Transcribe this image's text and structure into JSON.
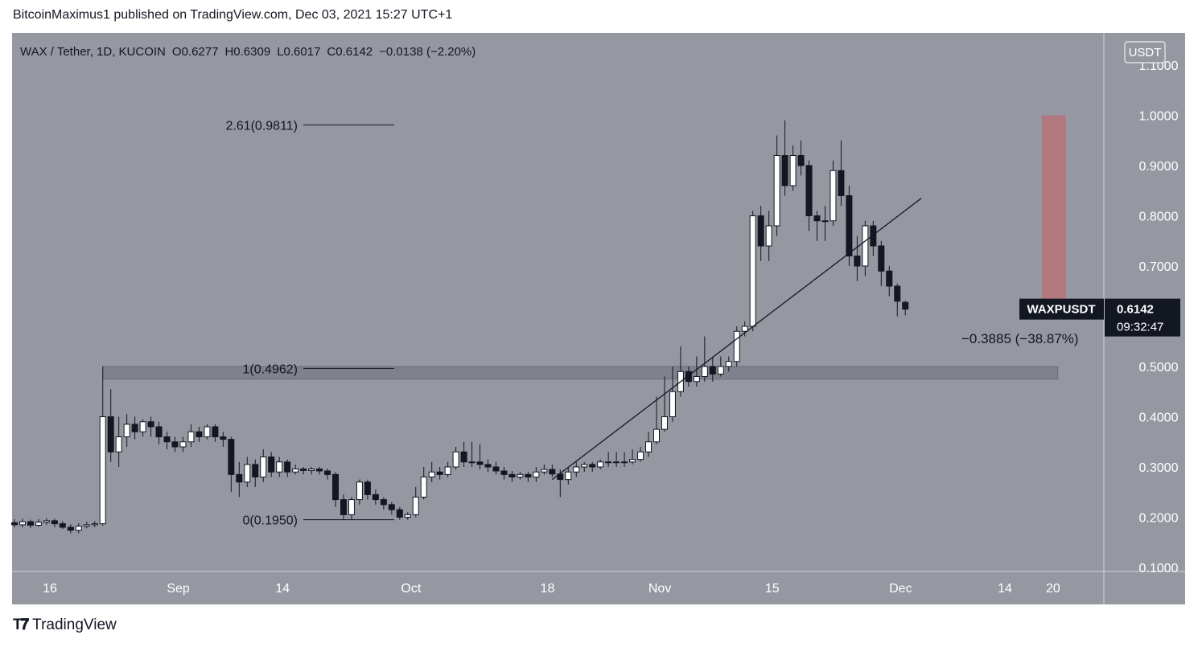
{
  "header": {
    "publisher": "BitcoinMaximus1 published on TradingView.com, Dec 03, 2021 15:27 UTC+1"
  },
  "footer": {
    "brand": "TradingView"
  },
  "colors": {
    "plot_bg": "#9598a1",
    "up": "#ffffff",
    "down": "#131722",
    "zone": "#787b86",
    "target": "#b2787f",
    "label_bg": "#131722"
  },
  "chart_data": {
    "type": "candlestick",
    "symbol_line": {
      "symbol": "WAX / Tether, 1D, KUCOIN",
      "o_label": "O",
      "o": "0.6277",
      "h_label": "H",
      "h": "0.6309",
      "l_label": "L",
      "l": "0.6017",
      "c_label": "C",
      "c": "0.6142",
      "change": "−0.0138 (−2.20%)"
    },
    "currency": "USDT",
    "y_ticks": [
      "1.1000",
      "1.0000",
      "0.9000",
      "0.8000",
      "0.7000",
      "0.6000",
      "0.5000",
      "0.4000",
      "0.3000",
      "0.2000",
      "0.1000"
    ],
    "y_tick_values": [
      1.1,
      1.0,
      0.9,
      0.8,
      0.7,
      0.6,
      0.5,
      0.4,
      0.3,
      0.2,
      0.1
    ],
    "ylim": [
      0.1,
      1.1
    ],
    "x_ticks": [
      {
        "label": "16",
        "day": 0
      },
      {
        "label": "Sep",
        "day": 16
      },
      {
        "label": "14",
        "day": 29
      },
      {
        "label": "Oct",
        "day": 45
      },
      {
        "label": "18",
        "day": 62
      },
      {
        "label": "Nov",
        "day": 76
      },
      {
        "label": "15",
        "day": 90
      },
      {
        "label": "Dec",
        "day": 106
      },
      {
        "label": "14",
        "day": 119
      },
      {
        "label": "20",
        "day": 125
      }
    ],
    "last_price": {
      "symbol": "WAXPUSDT",
      "price": "0.6142",
      "countdown": "09:32:47",
      "value": 0.6142
    },
    "fib_levels": [
      {
        "label": "2.61(0.9811)",
        "value": 0.9811
      },
      {
        "label": "1(0.4962)",
        "value": 0.4962
      },
      {
        "label": "0(0.1950)",
        "value": 0.195
      }
    ],
    "support_zone": {
      "from_day": 11,
      "to_day": 130,
      "top": 0.5,
      "bottom": 0.475
    },
    "target_box": {
      "from_day": 128,
      "to_day": 131,
      "top": 1.0,
      "bottom": 0.62
    },
    "measure_label": "−0.3885 (−38.87%)",
    "trendline": {
      "start": {
        "day": 67,
        "value": 0.275
      },
      "end": {
        "day": 113,
        "value": 0.835
      }
    },
    "candles": [
      [
        0,
        0.189,
        0.185,
        0.196,
        0.18
      ],
      [
        1,
        0.185,
        0.191,
        0.197,
        0.18
      ],
      [
        2,
        0.191,
        0.184,
        0.195,
        0.178
      ],
      [
        3,
        0.184,
        0.19,
        0.196,
        0.181
      ],
      [
        4,
        0.19,
        0.193,
        0.198,
        0.185
      ],
      [
        5,
        0.193,
        0.187,
        0.197,
        0.18
      ],
      [
        6,
        0.187,
        0.18,
        0.192,
        0.176
      ],
      [
        7,
        0.18,
        0.174,
        0.186,
        0.168
      ],
      [
        8,
        0.174,
        0.182,
        0.188,
        0.168
      ],
      [
        9,
        0.182,
        0.185,
        0.191,
        0.178
      ],
      [
        10,
        0.185,
        0.187,
        0.192,
        0.18
      ],
      [
        11,
        0.187,
        0.4,
        0.5,
        0.183
      ],
      [
        12,
        0.4,
        0.33,
        0.455,
        0.31
      ],
      [
        13,
        0.33,
        0.36,
        0.4,
        0.3
      ],
      [
        14,
        0.36,
        0.385,
        0.405,
        0.34
      ],
      [
        15,
        0.385,
        0.37,
        0.4,
        0.355
      ],
      [
        16,
        0.37,
        0.39,
        0.395,
        0.36
      ],
      [
        17,
        0.39,
        0.38,
        0.4,
        0.36
      ],
      [
        18,
        0.38,
        0.36,
        0.39,
        0.345
      ],
      [
        19,
        0.36,
        0.35,
        0.37,
        0.335
      ],
      [
        20,
        0.35,
        0.34,
        0.36,
        0.33
      ],
      [
        21,
        0.34,
        0.35,
        0.36,
        0.33
      ],
      [
        22,
        0.35,
        0.37,
        0.385,
        0.34
      ],
      [
        23,
        0.37,
        0.36,
        0.38,
        0.35
      ],
      [
        24,
        0.36,
        0.38,
        0.385,
        0.355
      ],
      [
        25,
        0.38,
        0.36,
        0.385,
        0.35
      ],
      [
        26,
        0.36,
        0.355,
        0.37,
        0.34
      ],
      [
        27,
        0.355,
        0.285,
        0.36,
        0.25
      ],
      [
        28,
        0.285,
        0.27,
        0.31,
        0.24
      ],
      [
        29,
        0.27,
        0.305,
        0.32,
        0.26
      ],
      [
        30,
        0.305,
        0.28,
        0.315,
        0.26
      ],
      [
        31,
        0.28,
        0.32,
        0.335,
        0.27
      ],
      [
        32,
        0.32,
        0.29,
        0.33,
        0.28
      ],
      [
        33,
        0.29,
        0.31,
        0.32,
        0.28
      ],
      [
        34,
        0.31,
        0.29,
        0.315,
        0.28
      ],
      [
        35,
        0.29,
        0.296,
        0.305,
        0.285
      ],
      [
        36,
        0.296,
        0.293,
        0.3,
        0.285
      ],
      [
        37,
        0.293,
        0.296,
        0.3,
        0.285
      ],
      [
        38,
        0.296,
        0.292,
        0.3,
        0.285
      ],
      [
        39,
        0.292,
        0.285,
        0.297,
        0.275
      ],
      [
        40,
        0.285,
        0.235,
        0.29,
        0.22
      ],
      [
        41,
        0.235,
        0.205,
        0.245,
        0.195
      ],
      [
        42,
        0.205,
        0.235,
        0.24,
        0.195
      ],
      [
        43,
        0.235,
        0.27,
        0.275,
        0.225
      ],
      [
        44,
        0.27,
        0.245,
        0.275,
        0.235
      ],
      [
        45,
        0.245,
        0.235,
        0.255,
        0.225
      ],
      [
        46,
        0.235,
        0.225,
        0.24,
        0.215
      ],
      [
        47,
        0.225,
        0.215,
        0.23,
        0.205
      ],
      [
        48,
        0.215,
        0.2,
        0.22,
        0.195
      ],
      [
        49,
        0.2,
        0.205,
        0.21,
        0.195
      ],
      [
        50,
        0.205,
        0.24,
        0.26,
        0.2
      ],
      [
        51,
        0.24,
        0.28,
        0.3,
        0.235
      ],
      [
        52,
        0.28,
        0.29,
        0.31,
        0.27
      ],
      [
        53,
        0.29,
        0.285,
        0.3,
        0.275
      ],
      [
        54,
        0.285,
        0.3,
        0.31,
        0.28
      ],
      [
        55,
        0.3,
        0.33,
        0.34,
        0.295
      ],
      [
        56,
        0.33,
        0.31,
        0.35,
        0.3
      ],
      [
        57,
        0.31,
        0.31,
        0.35,
        0.3
      ],
      [
        58,
        0.31,
        0.305,
        0.345,
        0.295
      ],
      [
        59,
        0.305,
        0.3,
        0.315,
        0.29
      ],
      [
        60,
        0.3,
        0.292,
        0.31,
        0.285
      ],
      [
        61,
        0.292,
        0.285,
        0.3,
        0.275
      ],
      [
        62,
        0.285,
        0.28,
        0.292,
        0.27
      ],
      [
        63,
        0.28,
        0.285,
        0.29,
        0.275
      ],
      [
        64,
        0.285,
        0.28,
        0.29,
        0.27
      ],
      [
        65,
        0.28,
        0.29,
        0.3,
        0.27
      ],
      [
        66,
        0.29,
        0.295,
        0.305,
        0.285
      ],
      [
        67,
        0.295,
        0.286,
        0.305,
        0.28
      ],
      [
        68,
        0.286,
        0.275,
        0.295,
        0.24
      ],
      [
        69,
        0.275,
        0.29,
        0.3,
        0.265
      ],
      [
        70,
        0.29,
        0.3,
        0.31,
        0.28
      ],
      [
        71,
        0.3,
        0.305,
        0.31,
        0.29
      ],
      [
        72,
        0.305,
        0.3,
        0.31,
        0.29
      ],
      [
        73,
        0.3,
        0.31,
        0.315,
        0.295
      ],
      [
        74,
        0.31,
        0.31,
        0.33,
        0.3
      ],
      [
        75,
        0.31,
        0.31,
        0.33,
        0.3
      ],
      [
        76,
        0.31,
        0.31,
        0.33,
        0.3
      ],
      [
        77,
        0.31,
        0.315,
        0.335,
        0.305
      ],
      [
        78,
        0.315,
        0.33,
        0.34,
        0.31
      ],
      [
        79,
        0.33,
        0.35,
        0.37,
        0.32
      ],
      [
        80,
        0.35,
        0.375,
        0.44,
        0.345
      ],
      [
        81,
        0.375,
        0.4,
        0.48,
        0.37
      ],
      [
        82,
        0.4,
        0.45,
        0.5,
        0.39
      ],
      [
        83,
        0.45,
        0.49,
        0.54,
        0.44
      ],
      [
        84,
        0.49,
        0.47,
        0.5,
        0.46
      ],
      [
        85,
        0.47,
        0.48,
        0.52,
        0.46
      ],
      [
        86,
        0.48,
        0.5,
        0.56,
        0.47
      ],
      [
        87,
        0.5,
        0.485,
        0.52,
        0.47
      ],
      [
        88,
        0.485,
        0.5,
        0.52,
        0.48
      ],
      [
        89,
        0.5,
        0.51,
        0.52,
        0.49
      ],
      [
        90,
        0.51,
        0.57,
        0.58,
        0.5
      ],
      [
        91,
        0.57,
        0.58,
        0.59,
        0.56
      ],
      [
        92,
        0.58,
        0.8,
        0.81,
        0.57
      ],
      [
        93,
        0.8,
        0.74,
        0.82,
        0.71
      ],
      [
        94,
        0.74,
        0.78,
        0.81,
        0.71
      ],
      [
        95,
        0.78,
        0.92,
        0.96,
        0.76
      ],
      [
        96,
        0.92,
        0.86,
        0.99,
        0.84
      ],
      [
        97,
        0.86,
        0.92,
        0.94,
        0.85
      ],
      [
        98,
        0.92,
        0.9,
        0.95,
        0.88
      ],
      [
        99,
        0.9,
        0.8,
        0.91,
        0.77
      ],
      [
        100,
        0.8,
        0.79,
        0.81,
        0.75
      ],
      [
        101,
        0.79,
        0.79,
        0.82,
        0.75
      ],
      [
        102,
        0.79,
        0.89,
        0.91,
        0.78
      ],
      [
        103,
        0.89,
        0.84,
        0.95,
        0.82
      ],
      [
        104,
        0.84,
        0.72,
        0.86,
        0.7
      ],
      [
        105,
        0.72,
        0.7,
        0.76,
        0.67
      ],
      [
        106,
        0.7,
        0.78,
        0.79,
        0.68
      ],
      [
        107,
        0.78,
        0.74,
        0.79,
        0.72
      ],
      [
        108,
        0.74,
        0.69,
        0.75,
        0.66
      ],
      [
        109,
        0.69,
        0.66,
        0.7,
        0.64
      ],
      [
        110,
        0.66,
        0.63,
        0.665,
        0.6
      ],
      [
        111,
        0.6277,
        0.6142,
        0.6309,
        0.6017
      ]
    ]
  }
}
